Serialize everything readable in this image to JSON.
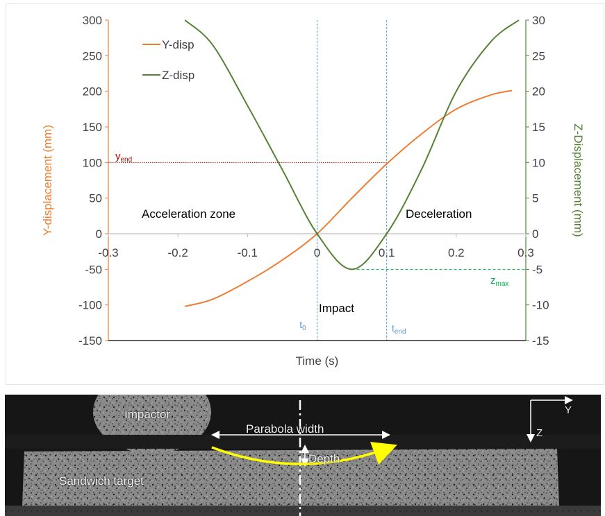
{
  "chart_data": {
    "type": "line",
    "xlabel": "Time (s)",
    "ylabel": "Y-displacement (mm)",
    "ylabel_right": "Z-Displacement (mm)",
    "xlim": [
      -0.3,
      0.3
    ],
    "ylim": [
      -150,
      300
    ],
    "ylim_right": [
      -15,
      30
    ],
    "x_ticks": [
      "-0.3",
      "-0.2",
      "-0.1",
      "0",
      "0.1",
      "0.2",
      "0.3"
    ],
    "y_ticks": [
      "-150",
      "-100",
      "-50",
      "0",
      "50",
      "100",
      "150",
      "200",
      "250",
      "300"
    ],
    "y_ticks_right": [
      "-15",
      "-10",
      "-5",
      "0",
      "5",
      "10",
      "15",
      "20",
      "25",
      "30"
    ],
    "legend_position": "top-left",
    "grid": false,
    "series": [
      {
        "name": "Y-disp",
        "axis": "left",
        "color": "#ed7d31",
        "x": [
          -0.19,
          -0.15,
          -0.1,
          -0.05,
          0.0,
          0.05,
          0.1,
          0.15,
          0.2,
          0.25,
          0.28
        ],
        "y": [
          -102,
          -92,
          -67,
          -37,
          0,
          50,
          98,
          140,
          175,
          195,
          201
        ]
      },
      {
        "name": "Z-disp",
        "axis": "right",
        "color": "#548235",
        "x": [
          -0.19,
          -0.15,
          -0.1,
          -0.05,
          0.0,
          0.05,
          0.1,
          0.15,
          0.2,
          0.25,
          0.29
        ],
        "y": [
          30,
          26.5,
          18,
          9,
          0,
          -5,
          0,
          9,
          20,
          27,
          30
        ]
      }
    ],
    "annotations": {
      "y_end": "y",
      "y_end_sub": "end",
      "y_end_value": 100,
      "z_max": "z",
      "z_max_sub": "max",
      "z_max_value": -5,
      "t0": "t",
      "t0_sub": "0",
      "t0_value": 0.0,
      "t_end": "t",
      "t_end_sub": "end",
      "t_end_value": 0.1,
      "acceleration_zone": "Acceleration zone",
      "deceleration": "Deceleration",
      "impact": "Impact"
    }
  },
  "photo": {
    "impactor_label": "Impactor",
    "parabola_width_label": "Parabola width",
    "depth_label": "Depth",
    "target_label": "Sandwich target",
    "axis_y_label": "Y",
    "axis_z_label": "Z"
  },
  "colors": {
    "y_axis": "#ed7d31",
    "z_axis": "#548235",
    "zone_lines": "#5b9bd5",
    "y_end_line": "#c00000",
    "z_max_line": "#00b050",
    "parabola": "#ffff00"
  }
}
